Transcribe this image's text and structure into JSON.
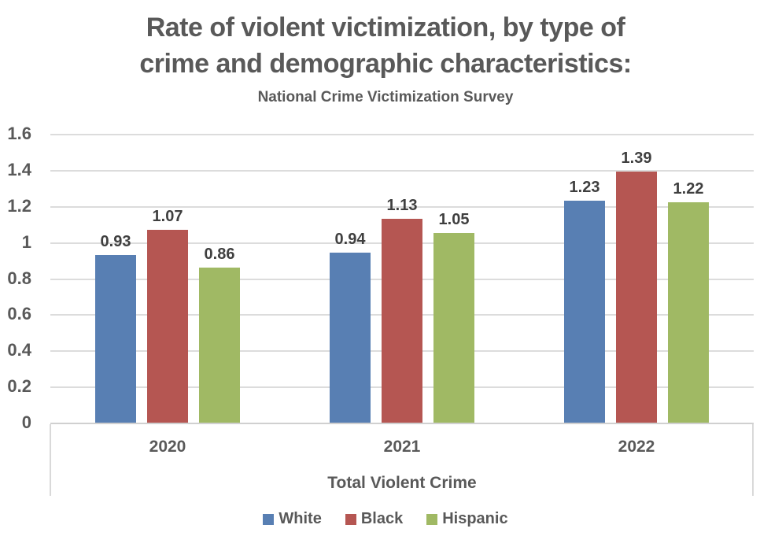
{
  "header": {
    "title_line1": "Rate of violent victimization, by type of",
    "title_line2": "crime and demographic characteristics:",
    "subtitle": "National Crime Victimization Survey"
  },
  "chart_data": {
    "type": "bar",
    "title": "Rate of violent victimization, by type of crime and demographic characteristics:",
    "subtitle": "National Crime Victimization Survey",
    "categories": [
      "2020",
      "2021",
      "2022"
    ],
    "series": [
      {
        "name": "White",
        "color": "#587FB3",
        "values": [
          0.93,
          0.94,
          1.23
        ]
      },
      {
        "name": "Black",
        "color": "#B55652",
        "values": [
          1.07,
          1.13,
          1.39
        ]
      },
      {
        "name": "Hispanic",
        "color": "#A0B964",
        "values": [
          0.86,
          1.05,
          1.22
        ]
      }
    ],
    "value_labels": [
      "0.93",
      "1.07",
      "0.86",
      "0.94",
      "1.13",
      "1.05",
      "1.23",
      "1.39",
      "1.22"
    ],
    "xlabel": "Total Violent Crime",
    "ylabel": "",
    "ylim": [
      0,
      1.6
    ],
    "yticks": [
      "1.6",
      "1.4",
      "1.2",
      "1",
      "0.8",
      "0.6",
      "0.4",
      "0.2",
      "0"
    ],
    "grid": true,
    "legend_position": "bottom",
    "colors": {
      "text": "#595959",
      "data_label": "#3f3f3f",
      "gridline": "#dcdcdc",
      "axis_line": "#d0d0d0",
      "frame_line": "#d9d9d9",
      "background": "#ffffff"
    }
  }
}
